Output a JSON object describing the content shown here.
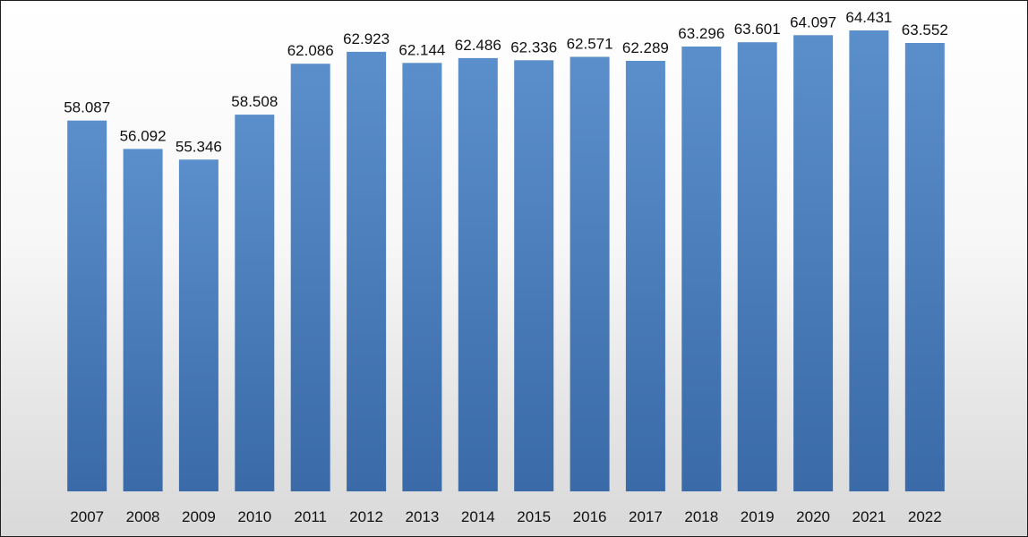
{
  "chart_data": {
    "type": "bar",
    "categories": [
      "2007",
      "2008",
      "2009",
      "2010",
      "2011",
      "2012",
      "2013",
      "2014",
      "2015",
      "2016",
      "2017",
      "2018",
      "2019",
      "2020",
      "2021",
      "2022"
    ],
    "values": [
      58.087,
      56.092,
      55.346,
      58.508,
      62.086,
      62.923,
      62.144,
      62.486,
      62.336,
      62.571,
      62.289,
      63.296,
      63.601,
      64.097,
      64.431,
      63.552
    ],
    "value_labels": [
      "58.087",
      "56.092",
      "55.346",
      "58.508",
      "62.086",
      "62.923",
      "62.144",
      "62.486",
      "62.336",
      "62.571",
      "62.289",
      "63.296",
      "63.601",
      "64.097",
      "64.431",
      "63.552"
    ],
    "title": "",
    "xlabel": "",
    "ylabel": "",
    "ylim": [
      32.0,
      64.431
    ],
    "grid": false,
    "legend": "none",
    "colors": {
      "bar": "#4f81bd",
      "bar_dark": "#3a6aa8",
      "bar_light": "#5b8fcb"
    }
  }
}
